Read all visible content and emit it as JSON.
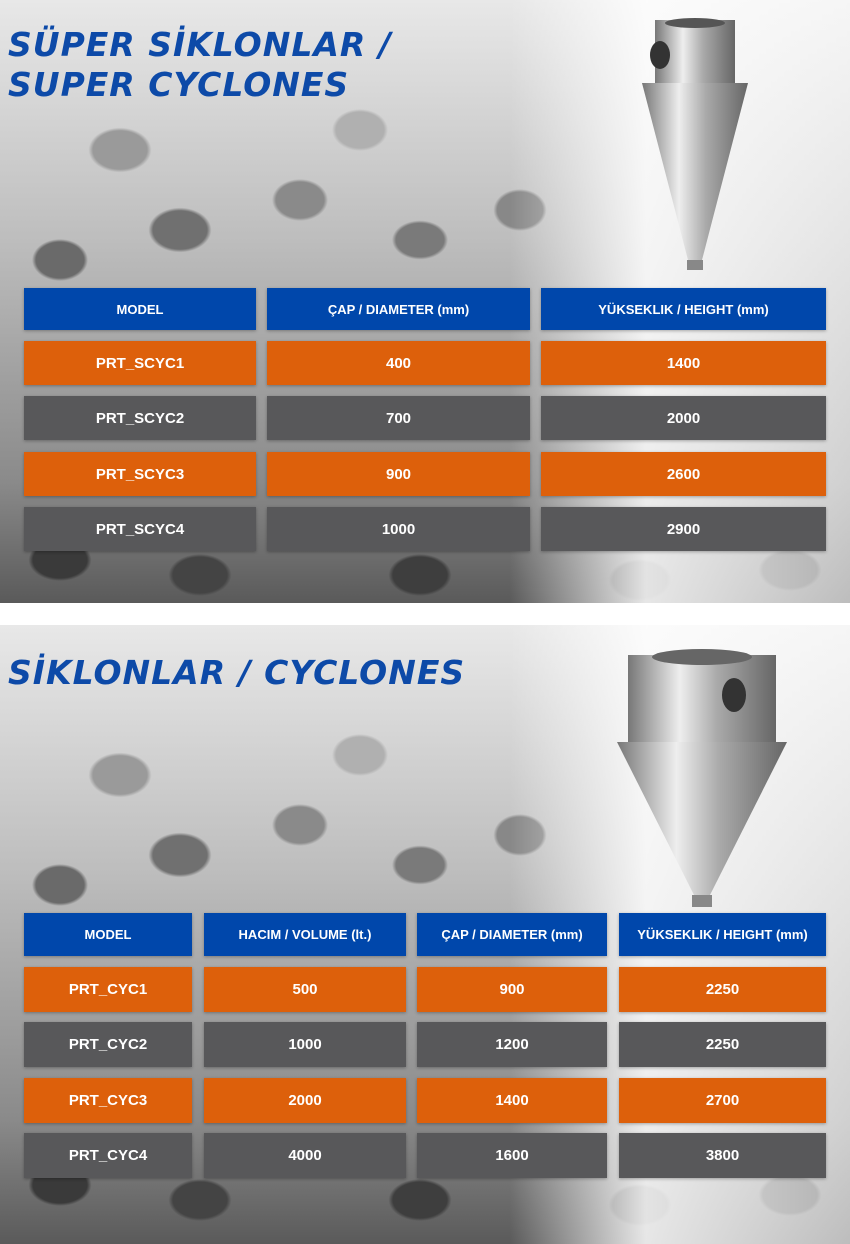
{
  "super_cyclones": {
    "title_line1": "SÜPER SİKLONLAR /",
    "title_line2": "SUPER CYCLONES",
    "headers": [
      "MODEL",
      "ÇAP / DIAMETER (mm)",
      "YÜKSEKLIK / HEIGHT (mm)"
    ],
    "rows": [
      [
        "PRT_SCYC1",
        "400",
        "1400"
      ],
      [
        "PRT_SCYC2",
        "700",
        "2000"
      ],
      [
        "PRT_SCYC3",
        "900",
        "2600"
      ],
      [
        "PRT_SCYC4",
        "1000",
        "2900"
      ]
    ]
  },
  "cyclones": {
    "title": "SİKLONLAR / CYCLONES",
    "headers": [
      "MODEL",
      "HACIM / VOLUME (lt.)",
      "ÇAP / DIAMETER (mm)",
      "YÜKSEKLIK / HEIGHT (mm)"
    ],
    "rows": [
      [
        "PRT_CYC1",
        "500",
        "900",
        "2250"
      ],
      [
        "PRT_CYC2",
        "1000",
        "1200",
        "2250"
      ],
      [
        "PRT_CYC3",
        "2000",
        "1400",
        "2700"
      ],
      [
        "PRT_CYC4",
        "4000",
        "1600",
        "3800"
      ]
    ]
  },
  "colors": {
    "header": "#0047ab",
    "odd_row": "#dd600b",
    "even_row": "#58585a",
    "title": "#0d4aa8"
  }
}
